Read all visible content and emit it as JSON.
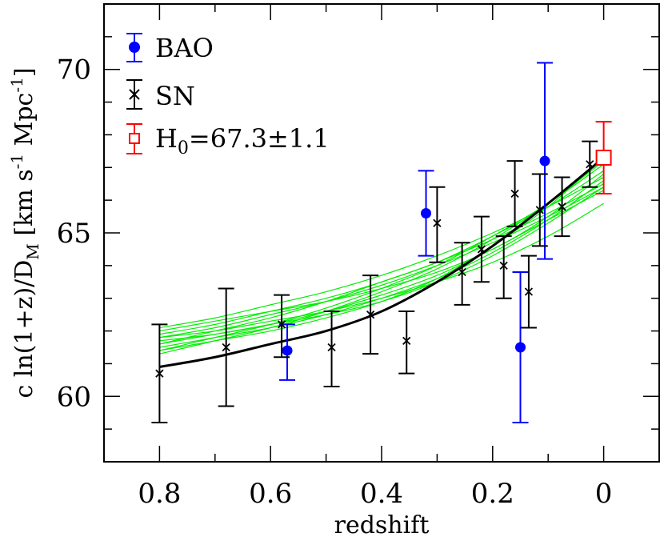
{
  "chart_data": {
    "type": "scatter",
    "xlabel": "redshift",
    "ylabel": "c ln(1+z)/D_M [km s⁻¹ Mpc⁻¹]",
    "ylabel_parts": {
      "pre": "c ln(1+z)/D",
      "sub": "M",
      "post": " [km s",
      "sup1": "-1",
      "mid": " Mpc",
      "sup2": "-1",
      "end": "]"
    },
    "xlim": [
      0.9,
      -0.1
    ],
    "ylim": [
      58,
      72
    ],
    "x_ticks": [
      {
        "value": 0.8,
        "label": "0.8"
      },
      {
        "value": 0.6,
        "label": "0.6"
      },
      {
        "value": 0.4,
        "label": "0.4"
      },
      {
        "value": 0.2,
        "label": "0.2"
      },
      {
        "value": 0.0,
        "label": "0"
      }
    ],
    "y_ticks": [
      {
        "value": 60,
        "label": "60"
      },
      {
        "value": 65,
        "label": "65"
      },
      {
        "value": 70,
        "label": "70"
      }
    ],
    "legend": {
      "placement": "top-left",
      "entries": [
        {
          "series": "bao",
          "label": "BAO"
        },
        {
          "series": "sn",
          "label": "SN"
        },
        {
          "series": "h0",
          "label_pre": "H",
          "label_sub": "0",
          "label_post": "=67.3±1.1"
        }
      ]
    },
    "series": [
      {
        "id": "bao",
        "name": "BAO",
        "color": "#0000ff",
        "marker": "filled-circle",
        "points": [
          {
            "x": 0.57,
            "y": 61.4,
            "lo": 60.5,
            "hi": 62.2
          },
          {
            "x": 0.32,
            "y": 65.6,
            "lo": 64.3,
            "hi": 66.9
          },
          {
            "x": 0.15,
            "y": 61.5,
            "lo": 59.2,
            "hi": 63.8
          },
          {
            "x": 0.106,
            "y": 67.2,
            "lo": 64.2,
            "hi": 70.2
          }
        ]
      },
      {
        "id": "sn",
        "name": "SN",
        "color": "#000000",
        "marker": "cross",
        "points": [
          {
            "x": 0.8,
            "y": 60.7,
            "lo": 59.2,
            "hi": 62.2
          },
          {
            "x": 0.68,
            "y": 61.5,
            "lo": 59.7,
            "hi": 63.3
          },
          {
            "x": 0.58,
            "y": 62.2,
            "lo": 61.2,
            "hi": 63.1
          },
          {
            "x": 0.49,
            "y": 61.5,
            "lo": 60.3,
            "hi": 62.6
          },
          {
            "x": 0.42,
            "y": 62.5,
            "lo": 61.3,
            "hi": 63.7
          },
          {
            "x": 0.355,
            "y": 61.7,
            "lo": 60.7,
            "hi": 62.6
          },
          {
            "x": 0.3,
            "y": 65.3,
            "lo": 64.1,
            "hi": 66.4
          },
          {
            "x": 0.255,
            "y": 63.8,
            "lo": 62.8,
            "hi": 64.7
          },
          {
            "x": 0.22,
            "y": 64.5,
            "lo": 63.5,
            "hi": 65.5
          },
          {
            "x": 0.18,
            "y": 64.0,
            "lo": 63.0,
            "hi": 64.9
          },
          {
            "x": 0.16,
            "y": 66.2,
            "lo": 65.2,
            "hi": 67.2
          },
          {
            "x": 0.135,
            "y": 63.2,
            "lo": 62.1,
            "hi": 64.3
          },
          {
            "x": 0.115,
            "y": 65.7,
            "lo": 64.6,
            "hi": 66.8
          },
          {
            "x": 0.075,
            "y": 65.8,
            "lo": 64.9,
            "hi": 66.7
          },
          {
            "x": 0.025,
            "y": 67.1,
            "lo": 66.4,
            "hi": 67.8
          }
        ]
      },
      {
        "id": "h0",
        "name": "H0=67.3±1.1",
        "color": "#ff0000",
        "marker": "open-square",
        "points": [
          {
            "x": 0.0,
            "y": 67.3,
            "lo": 66.2,
            "hi": 68.4
          }
        ]
      }
    ],
    "best_fit_curve": {
      "color": "#000000",
      "x": [
        0.8,
        0.7,
        0.6,
        0.5,
        0.4,
        0.3,
        0.2,
        0.1,
        0.0
      ],
      "y": [
        60.9,
        61.2,
        61.6,
        62.0,
        62.6,
        63.5,
        64.6,
        65.9,
        67.3
      ]
    },
    "sample_curves": {
      "color": "#00ee00",
      "x": [
        0.8,
        0.7,
        0.6,
        0.5,
        0.4,
        0.3,
        0.2,
        0.1,
        0.0
      ],
      "curves": [
        [
          61.4,
          61.8,
          62.2,
          62.7,
          63.3,
          64.0,
          64.9,
          65.9,
          67.1
        ],
        [
          61.6,
          62.0,
          62.4,
          62.9,
          63.5,
          64.1,
          64.9,
          65.8,
          66.9
        ],
        [
          61.9,
          62.2,
          62.6,
          63.0,
          63.5,
          64.1,
          64.8,
          65.6,
          66.5
        ],
        [
          62.1,
          62.4,
          62.8,
          63.2,
          63.7,
          64.3,
          65.0,
          65.8,
          66.7
        ],
        [
          61.8,
          62.0,
          62.3,
          62.6,
          63.0,
          63.5,
          64.1,
          64.9,
          65.9
        ],
        [
          61.5,
          61.8,
          62.1,
          62.5,
          63.0,
          63.6,
          64.4,
          65.4,
          66.6
        ],
        [
          61.7,
          61.9,
          62.2,
          62.6,
          63.1,
          63.7,
          64.5,
          65.4,
          66.3
        ],
        [
          61.3,
          61.7,
          62.1,
          62.6,
          63.2,
          63.9,
          64.8,
          65.9,
          67.2
        ],
        [
          61.6,
          61.9,
          62.2,
          62.5,
          62.9,
          63.5,
          64.3,
          65.3,
          66.4
        ],
        [
          62.0,
          62.3,
          62.6,
          62.9,
          63.3,
          63.8,
          64.5,
          65.5,
          66.8
        ],
        [
          61.4,
          61.7,
          62.0,
          62.4,
          62.9,
          63.6,
          64.6,
          65.8,
          67.3
        ],
        [
          61.8,
          62.1,
          62.5,
          62.9,
          63.4,
          64.0,
          64.7,
          65.5,
          66.4
        ]
      ]
    }
  }
}
